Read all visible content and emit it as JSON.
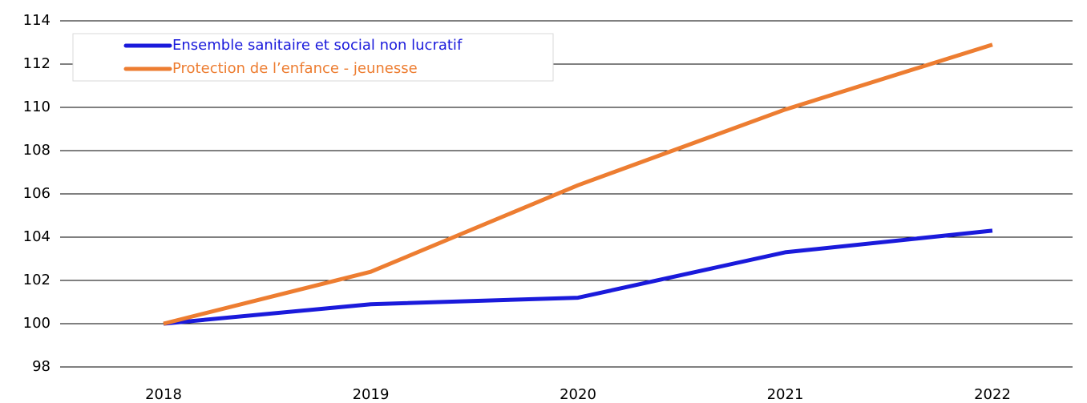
{
  "chart_data": {
    "type": "line",
    "categories": [
      "2018",
      "2019",
      "2020",
      "2021",
      "2022"
    ],
    "series": [
      {
        "name": "Ensemble sanitaire et social non lucratif",
        "color": "#1a1adb",
        "values": [
          100,
          100.9,
          101.2,
          103.3,
          104.3
        ]
      },
      {
        "name": "Protection de l’enfance - jeunesse",
        "color": "#ed7d31",
        "values": [
          100,
          102.4,
          106.4,
          109.9,
          112.9
        ]
      }
    ],
    "ylim": [
      98,
      114
    ],
    "yticks": [
      98,
      100,
      102,
      104,
      106,
      108,
      110,
      112,
      114
    ],
    "grid": true,
    "legend": "upper left"
  }
}
